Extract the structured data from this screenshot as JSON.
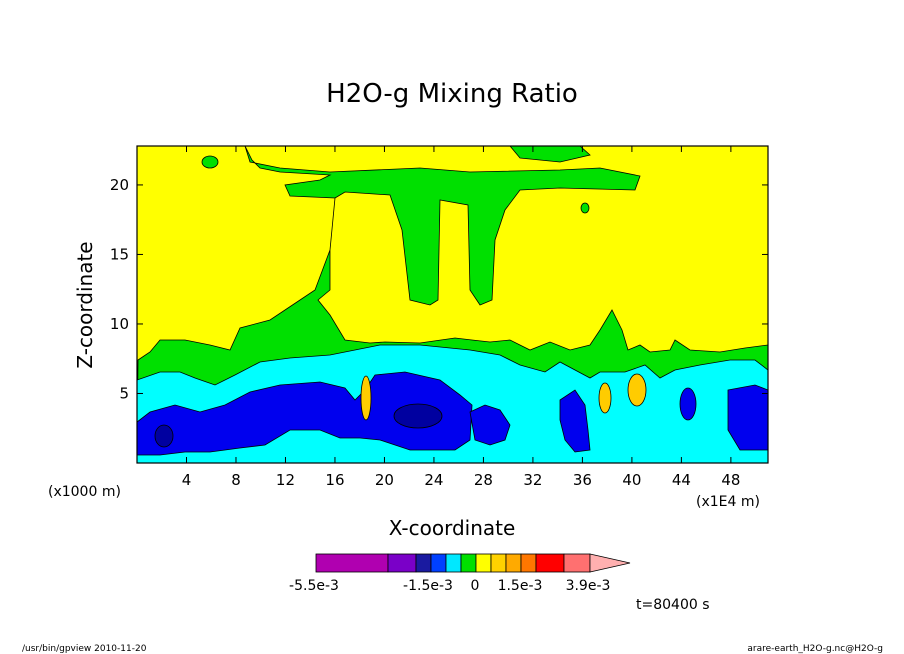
{
  "chart_data": {
    "type": "heatmap",
    "title": "H2O-g Mixing Ratio",
    "xlabel": "X-coordinate",
    "ylabel": "Z-coordinate",
    "x_unit": "(x1E4 m)",
    "y_unit": "(x1000 m)",
    "x_ticks": [
      4,
      8,
      12,
      16,
      20,
      24,
      28,
      32,
      36,
      40,
      44,
      48
    ],
    "y_ticks": [
      5,
      10,
      15,
      20
    ],
    "xlim": [
      0,
      51
    ],
    "ylim": [
      0,
      22.8
    ],
    "colorbar": {
      "colors": [
        "#b000b0",
        "#7a00c8",
        "#1a1aa0",
        "#0040ff",
        "#00e8ff",
        "#00e000",
        "#ffff00",
        "#ffd200",
        "#ffaa00",
        "#ff7700",
        "#ff0000",
        "#ff7070",
        "#ffb0b0"
      ],
      "tick_labels": [
        "-5.5e-3",
        "-1.5e-3",
        "0",
        "1.5e-3",
        "3.9e-3"
      ]
    },
    "time_label": "t=80400 s",
    "regions": {
      "background": "#ffff00",
      "green": "#00e000",
      "cyan": "#00ffff",
      "blue": "#0000ee",
      "deep_blue": "#0000a0",
      "orange": "#ffcc00"
    }
  },
  "footer": {
    "left": "/usr/bin/gpview   2010-11-20",
    "right": "arare-earth_H2O-g.nc@H2O-g"
  }
}
